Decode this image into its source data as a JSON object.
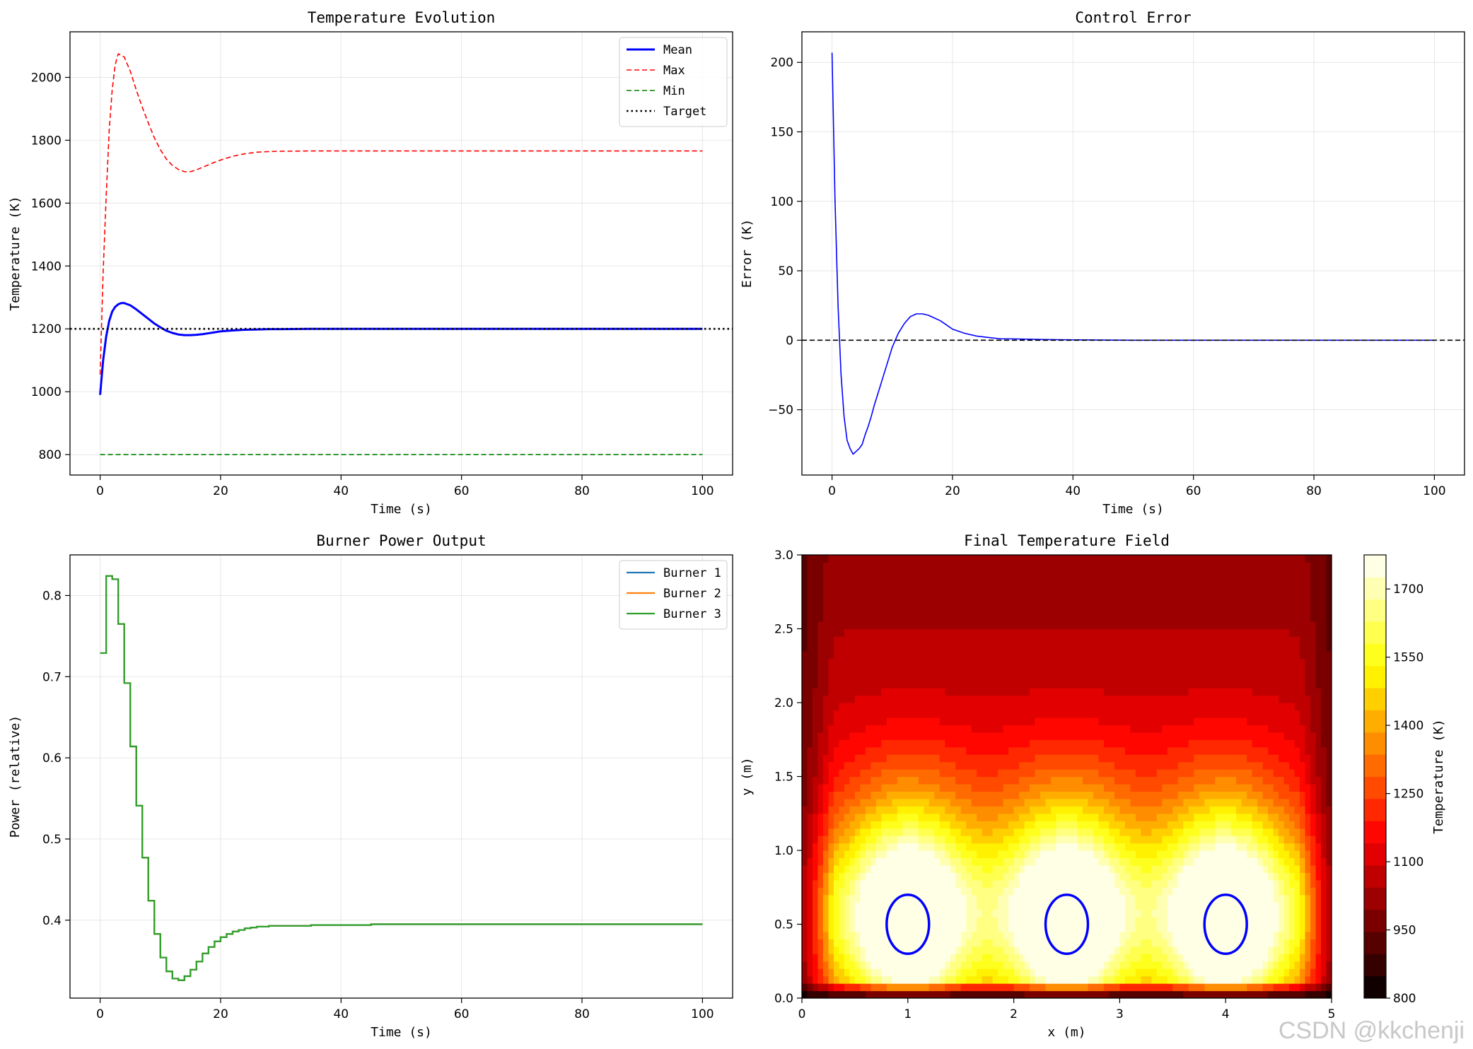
{
  "watermark": "CSDN @kkchenji",
  "chart_data": [
    {
      "type": "line",
      "title": "Temperature Evolution",
      "xlabel": "Time (s)",
      "ylabel": "Temperature (K)",
      "xlim": [
        -5,
        105
      ],
      "ylim": [
        735,
        2145
      ],
      "xticks": [
        0,
        20,
        40,
        60,
        80,
        100
      ],
      "yticks": [
        800,
        1000,
        1200,
        1400,
        1600,
        1800,
        2000
      ],
      "grid": true,
      "legend_position": "top-right",
      "series": [
        {
          "name": "Mean",
          "color": "#0000ff",
          "style": "solid",
          "x": [
            0,
            0.5,
            1,
            1.5,
            2,
            2.5,
            3,
            3.5,
            4,
            5,
            6,
            7,
            8,
            9,
            10,
            11,
            12,
            13,
            14,
            15,
            16,
            17,
            18,
            19,
            20,
            22,
            24,
            26,
            28,
            30,
            35,
            40,
            50,
            60,
            70,
            80,
            90,
            100
          ],
          "y": [
            990,
            1100,
            1175,
            1225,
            1255,
            1270,
            1278,
            1282,
            1282,
            1275,
            1262,
            1247,
            1232,
            1217,
            1205,
            1194,
            1187,
            1182,
            1180,
            1180,
            1181,
            1183,
            1186,
            1189,
            1192,
            1195,
            1197,
            1198,
            1199,
            1199,
            1200,
            1200,
            1200,
            1200,
            1200,
            1200,
            1200,
            1200
          ]
        },
        {
          "name": "Max",
          "color": "#ff0000",
          "style": "dashed",
          "x": [
            0,
            0.5,
            1,
            1.5,
            2,
            2.5,
            3,
            3.5,
            4,
            5,
            6,
            7,
            8,
            9,
            10,
            11,
            12,
            13,
            14,
            15,
            16,
            17,
            18,
            19,
            20,
            22,
            24,
            26,
            28,
            30,
            35,
            40,
            50,
            60,
            70,
            80,
            90,
            100
          ],
          "y": [
            1055,
            1380,
            1620,
            1830,
            1960,
            2040,
            2075,
            2070,
            2065,
            2020,
            1960,
            1905,
            1855,
            1808,
            1770,
            1740,
            1720,
            1707,
            1700,
            1700,
            1706,
            1714,
            1722,
            1730,
            1737,
            1749,
            1757,
            1762,
            1764,
            1765,
            1766,
            1766,
            1766,
            1766,
            1766,
            1766,
            1766,
            1766
          ]
        },
        {
          "name": "Min",
          "color": "#008000",
          "style": "dashed",
          "x": [
            0,
            100
          ],
          "y": [
            800,
            800
          ]
        },
        {
          "name": "Target",
          "color": "#000000",
          "style": "dotted",
          "x": [
            -5,
            105
          ],
          "y": [
            1200,
            1200
          ]
        }
      ]
    },
    {
      "type": "line",
      "title": "Control Error",
      "xlabel": "Time (s)",
      "ylabel": "Error (K)",
      "xlim": [
        -5,
        105
      ],
      "ylim": [
        -97,
        222
      ],
      "xticks": [
        0,
        20,
        40,
        60,
        80,
        100
      ],
      "yticks": [
        -50,
        0,
        50,
        100,
        150,
        200
      ],
      "grid": true,
      "series": [
        {
          "color": "#0000ff",
          "style": "solid",
          "x": [
            0,
            0.5,
            1,
            1.5,
            2,
            2.5,
            3,
            3.5,
            4,
            4.5,
            5,
            5.5,
            6,
            6.5,
            7,
            7.5,
            8,
            8.5,
            9,
            9.5,
            10,
            11,
            12,
            13,
            14,
            15,
            16,
            17,
            18,
            19,
            20,
            22,
            24,
            26,
            28,
            30,
            35,
            40,
            50,
            60,
            70,
            80,
            90,
            100
          ],
          "y": [
            207,
            100,
            25,
            -25,
            -55,
            -72,
            -78,
            -82,
            -80,
            -78,
            -75,
            -68,
            -62,
            -55,
            -47,
            -40,
            -33,
            -26,
            -19,
            -12,
            -5,
            5,
            12,
            17,
            19,
            19,
            18,
            16,
            14,
            11,
            8,
            5,
            3,
            2,
            1,
            1,
            0.5,
            0.3,
            0,
            0,
            0,
            0,
            0,
            0
          ]
        },
        {
          "color": "#000000",
          "style": "dashed",
          "x": [
            -5,
            105
          ],
          "y": [
            0,
            0
          ]
        }
      ]
    },
    {
      "type": "line",
      "title": "Burner Power Output",
      "xlabel": "Time (s)",
      "ylabel": "Power (relative)",
      "xlim": [
        -5,
        105
      ],
      "ylim": [
        0.304,
        0.85
      ],
      "xticks": [
        0,
        20,
        40,
        60,
        80,
        100
      ],
      "yticks": [
        0.4,
        0.5,
        0.6,
        0.7,
        0.8
      ],
      "grid": true,
      "legend_position": "top-right",
      "step": true,
      "x": [
        0,
        1,
        2,
        3,
        4,
        5,
        6,
        7,
        8,
        9,
        10,
        11,
        12,
        13,
        14,
        15,
        16,
        17,
        18,
        19,
        20,
        21,
        22,
        23,
        24,
        25,
        26,
        28,
        30,
        35,
        40,
        45,
        50,
        60,
        70,
        80,
        90,
        100
      ],
      "series": [
        {
          "name": "Burner 1",
          "color": "#1f77b4",
          "y": [
            0.729,
            0.824,
            0.82,
            0.765,
            0.692,
            0.614,
            0.541,
            0.477,
            0.424,
            0.383,
            0.354,
            0.337,
            0.328,
            0.326,
            0.331,
            0.339,
            0.349,
            0.359,
            0.367,
            0.374,
            0.379,
            0.383,
            0.386,
            0.388,
            0.39,
            0.391,
            0.392,
            0.393,
            0.393,
            0.394,
            0.394,
            0.395,
            0.395,
            0.395,
            0.395,
            0.395,
            0.395,
            0.395
          ]
        },
        {
          "name": "Burner 2",
          "color": "#ff7f0e",
          "y": [
            0.729,
            0.824,
            0.82,
            0.765,
            0.692,
            0.614,
            0.541,
            0.477,
            0.424,
            0.383,
            0.354,
            0.337,
            0.328,
            0.326,
            0.331,
            0.339,
            0.349,
            0.359,
            0.367,
            0.374,
            0.379,
            0.383,
            0.386,
            0.388,
            0.39,
            0.391,
            0.392,
            0.393,
            0.393,
            0.394,
            0.394,
            0.395,
            0.395,
            0.395,
            0.395,
            0.395,
            0.395,
            0.395
          ]
        },
        {
          "name": "Burner 3",
          "color": "#2ca02c",
          "y": [
            0.729,
            0.824,
            0.82,
            0.765,
            0.692,
            0.614,
            0.541,
            0.477,
            0.424,
            0.383,
            0.354,
            0.337,
            0.328,
            0.326,
            0.331,
            0.339,
            0.349,
            0.359,
            0.367,
            0.374,
            0.379,
            0.383,
            0.386,
            0.388,
            0.39,
            0.391,
            0.392,
            0.393,
            0.393,
            0.394,
            0.394,
            0.395,
            0.395,
            0.395,
            0.395,
            0.395,
            0.395,
            0.395
          ]
        }
      ]
    },
    {
      "type": "heatmap",
      "title": "Final Temperature Field",
      "xlabel": "x (m)",
      "ylabel": "y (m)",
      "xlim": [
        0,
        5
      ],
      "ylim": [
        0,
        3
      ],
      "xticks": [
        0,
        1,
        2,
        3,
        4,
        5
      ],
      "yticks": [
        0.0,
        0.5,
        1.0,
        1.5,
        2.0,
        2.5,
        3.0
      ],
      "colorbar_label": "Temperature (K)",
      "colorbar_range": [
        800,
        1775
      ],
      "colorbar_ticks": [
        800,
        950,
        1100,
        1250,
        1400,
        1550,
        1700
      ],
      "colormap": "hot",
      "levels": 20,
      "burners": [
        {
          "x": 1.0,
          "y": 0.5,
          "rx": 0.2,
          "ry": 0.2
        },
        {
          "x": 2.5,
          "y": 0.5,
          "rx": 0.2,
          "ry": 0.2
        },
        {
          "x": 4.0,
          "y": 0.5,
          "rx": 0.2,
          "ry": 0.2
        }
      ],
      "burner_color": "#0000ff"
    }
  ]
}
